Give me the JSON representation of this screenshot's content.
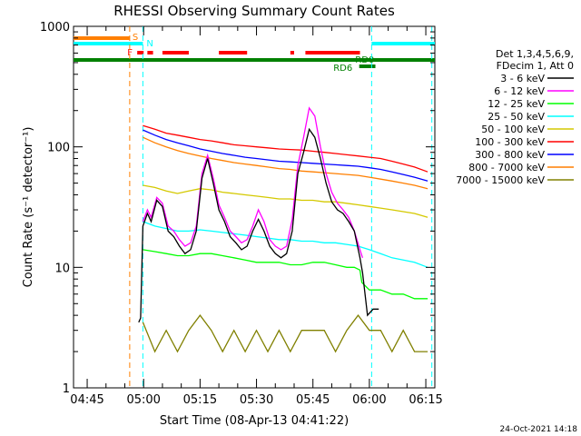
{
  "chart_data": {
    "type": "line",
    "title": "RHESSI Observing Summary Count Rates",
    "xlabel": "Start Time (08-Apr-13 04:41:22)",
    "ylabel": "Count Rate (s⁻¹ detector⁻¹)",
    "x_unit": "minutes of day",
    "xlim": [
      281.37,
      377.4
    ],
    "ylim": [
      1,
      1000
    ],
    "y_scale": "log",
    "x_ticks": [
      {
        "value": 285,
        "label": "04:45"
      },
      {
        "value": 300,
        "label": "05:00"
      },
      {
        "value": 315,
        "label": "05:15"
      },
      {
        "value": 330,
        "label": "05:30"
      },
      {
        "value": 345,
        "label": "05:45"
      },
      {
        "value": 360,
        "label": "06:00"
      },
      {
        "value": 375,
        "label": "06:15"
      }
    ],
    "y_ticks": [
      {
        "value": 1,
        "label": "1"
      },
      {
        "value": 10,
        "label": "10"
      },
      {
        "value": 100,
        "label": "100"
      },
      {
        "value": 1000,
        "label": "1000"
      }
    ],
    "legend_header": [
      "Det 1,3,4,5,6,9,",
      "FDecim 1, Att 0"
    ],
    "series": [
      {
        "name": "3 - 6 keV",
        "color": "#000000",
        "x": [
          298.7,
          299.2,
          299.8,
          301,
          302,
          303.5,
          305,
          306.5,
          308,
          309.5,
          311,
          312.5,
          314,
          315.5,
          317,
          318.5,
          320,
          321.5,
          323,
          324.5,
          326,
          327.5,
          329,
          330.5,
          332,
          333.5,
          335,
          336.5,
          338,
          339.5,
          341,
          342.5,
          344,
          345.5,
          347,
          348.5,
          350,
          351.5,
          353,
          354.5,
          356,
          357.5,
          358.2,
          359.5,
          361,
          362.5
        ],
        "values": [
          3.5,
          3.8,
          22,
          28,
          24,
          36,
          32,
          20,
          18,
          15,
          13,
          14,
          20,
          55,
          80,
          50,
          30,
          24,
          18,
          16,
          14,
          15,
          20,
          25,
          20,
          15,
          13,
          12,
          13,
          20,
          60,
          90,
          140,
          120,
          80,
          50,
          35,
          30,
          28,
          24,
          20,
          12,
          9,
          4,
          4.5,
          4.5
        ]
      },
      {
        "name": "6 - 12 keV",
        "color": "#ff00ff",
        "x": [
          299.8,
          301,
          302,
          303.5,
          305,
          306.5,
          308,
          309.5,
          311,
          312.5,
          314,
          315.5,
          317,
          318.5,
          320,
          321.5,
          323,
          324.5,
          326,
          327.5,
          329,
          330.5,
          332,
          333.5,
          335,
          336.5,
          338,
          339.5,
          341,
          342.5,
          344,
          345.5,
          347,
          348.5,
          350,
          351.5,
          353,
          354.5,
          356,
          357.5,
          358.2
        ],
        "values": [
          24,
          30,
          26,
          38,
          34,
          22,
          20,
          17,
          15,
          16,
          22,
          60,
          85,
          55,
          33,
          26,
          20,
          18,
          16,
          17,
          22,
          30,
          24,
          17,
          15,
          14,
          15,
          25,
          70,
          120,
          210,
          180,
          100,
          60,
          42,
          34,
          30,
          26,
          20,
          14,
          12
        ]
      },
      {
        "name": "12 - 25 keV",
        "color": "#00ff00",
        "x": [
          299.8,
          303,
          306,
          309,
          312,
          315,
          318,
          321,
          324,
          327,
          330,
          333,
          336,
          339,
          342,
          345,
          348,
          351,
          354,
          356,
          357.5,
          358,
          360,
          363,
          366,
          369,
          372,
          375.5
        ],
        "values": [
          14,
          13.5,
          13,
          12.5,
          12.5,
          13,
          13,
          12.5,
          12,
          11.5,
          11,
          11,
          11,
          10.5,
          10.5,
          11,
          11,
          10.5,
          10,
          10,
          9.5,
          7.5,
          6.5,
          6.5,
          6,
          6,
          5.5,
          5.5
        ]
      },
      {
        "name": "25 - 50 keV",
        "color": "#00ffff",
        "x": [
          299.8,
          303,
          306,
          309,
          312,
          315,
          318,
          321,
          324,
          327,
          330,
          333,
          336,
          339,
          342,
          345,
          348,
          351,
          354,
          357,
          360,
          363,
          366,
          369,
          372,
          375.5
        ],
        "values": [
          24,
          22,
          21,
          20,
          20,
          20.5,
          20,
          19.5,
          19,
          18.5,
          18,
          17.5,
          17,
          17,
          16.5,
          16.5,
          16,
          16,
          15.5,
          15,
          14,
          13,
          12,
          11.5,
          11,
          10
        ]
      },
      {
        "name": "50 - 100 keV",
        "color": "#d4c900",
        "x": [
          299.8,
          303,
          306,
          309,
          312,
          315,
          318,
          321,
          324,
          327,
          330,
          333,
          336,
          339,
          342,
          345,
          348,
          351,
          354,
          357,
          360,
          363,
          366,
          369,
          372,
          375.5
        ],
        "values": [
          48,
          46,
          43,
          41,
          43,
          45,
          44,
          42,
          41,
          40,
          39,
          38,
          37,
          37,
          36,
          36,
          35,
          35,
          34,
          33,
          32,
          31,
          30,
          29,
          28,
          26
        ]
      },
      {
        "name": "100 - 300 keV",
        "color": "#ff0000",
        "x": [
          299.8,
          303,
          306,
          309,
          312,
          315,
          318,
          321,
          324,
          327,
          330,
          333,
          336,
          339,
          342,
          345,
          348,
          351,
          354,
          357,
          360,
          363,
          366,
          369,
          372,
          375.5
        ],
        "values": [
          150,
          140,
          130,
          125,
          120,
          115,
          112,
          108,
          104,
          102,
          100,
          98,
          96,
          95,
          94,
          92,
          90,
          88,
          86,
          84,
          82,
          80,
          76,
          72,
          68,
          62
        ]
      },
      {
        "name": "300 - 800 keV",
        "color": "#0000ff",
        "x": [
          299.8,
          303,
          306,
          309,
          312,
          315,
          318,
          321,
          324,
          327,
          330,
          333,
          336,
          339,
          342,
          345,
          348,
          351,
          354,
          357,
          360,
          363,
          366,
          369,
          372,
          375.5
        ],
        "values": [
          138,
          125,
          115,
          108,
          102,
          96,
          92,
          88,
          85,
          82,
          80,
          78,
          76,
          75,
          74,
          73,
          72,
          71,
          70,
          69,
          67,
          65,
          62,
          59,
          56,
          52
        ]
      },
      {
        "name": "800 - 7000 keV",
        "color": "#ff7f00",
        "x": [
          299.8,
          303,
          306,
          309,
          312,
          315,
          318,
          321,
          324,
          327,
          330,
          333,
          336,
          339,
          342,
          345,
          348,
          351,
          354,
          357,
          360,
          363,
          366,
          369,
          372,
          375.5
        ],
        "values": [
          120,
          108,
          100,
          93,
          88,
          84,
          80,
          77,
          74,
          72,
          70,
          68,
          66,
          65,
          63,
          62,
          61,
          60,
          59,
          58,
          56,
          54,
          52,
          50,
          48,
          45
        ]
      },
      {
        "name": "7000 - 15000 keV",
        "color": "#808000",
        "x": [
          299.8,
          303,
          306,
          309,
          312,
          315,
          318,
          321,
          324,
          327,
          330,
          333,
          336,
          339,
          342,
          345,
          348,
          351,
          354,
          357,
          360,
          363,
          366,
          369,
          372,
          375.5
        ],
        "values": [
          3.5,
          2,
          3,
          2,
          3,
          4,
          3,
          2,
          3,
          2,
          3,
          2,
          3,
          2,
          3,
          3,
          3,
          2,
          3,
          4,
          3,
          3,
          2,
          3,
          2,
          2
        ]
      }
    ],
    "flags": [
      {
        "label": "S",
        "color": "#ff7f00",
        "start": 281.37,
        "end": 296.3
      },
      {
        "label": "N",
        "color": "#00ffff",
        "start": 281.37,
        "end": 299.8
      },
      {
        "label": "N",
        "color": "#00ffff",
        "start": 360.6,
        "end": 377.4
      },
      {
        "label": "F",
        "color": "#ff0000",
        "segments": [
          [
            298.3,
            300
          ],
          [
            301,
            302.5
          ],
          [
            305,
            312
          ],
          [
            320,
            327.5
          ],
          [
            339,
            340
          ],
          [
            343,
            357.5
          ]
        ]
      },
      {
        "label": "RD0",
        "color": "#008000",
        "start": 360.3,
        "end": 361.6
      },
      {
        "label": "RD6",
        "color": "#008000",
        "start": 357.3,
        "end": 361.6
      },
      {
        "label": "",
        "color": "#008000",
        "start": 281.37,
        "end": 377.4
      }
    ],
    "vlines": [
      {
        "value": 296.3,
        "color": "#ff7f00"
      },
      {
        "value": 299.8,
        "color": "#00ffff"
      },
      {
        "value": 360.6,
        "color": "#00ffff"
      },
      {
        "value": 376.6,
        "color": "#00ffff"
      }
    ]
  },
  "footer": {
    "timestamp": "24-Oct-2021 14:18"
  }
}
